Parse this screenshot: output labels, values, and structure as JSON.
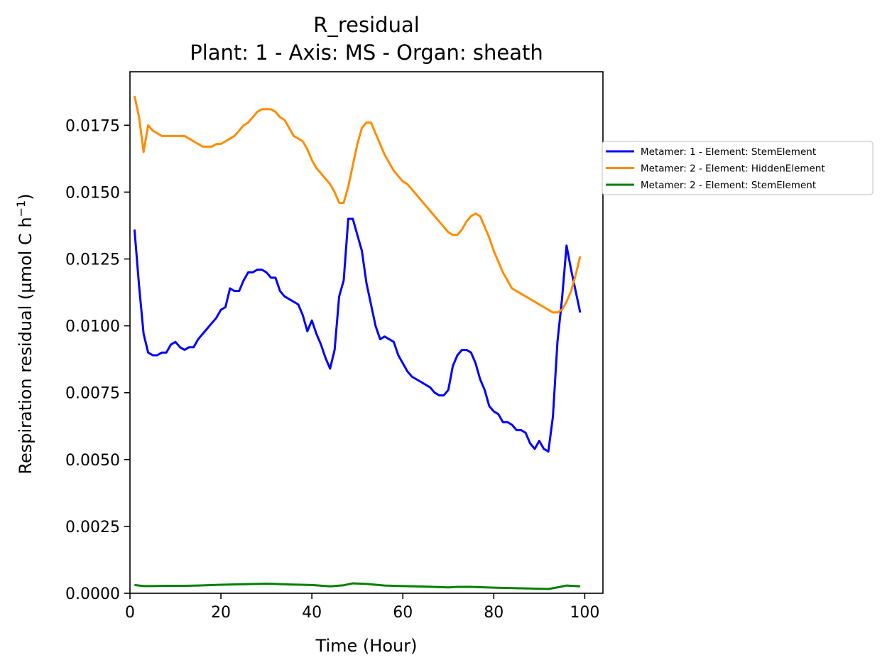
{
  "chart_data": {
    "type": "line",
    "title": "R_residual",
    "subtitle": "Plant: 1 - Axis: MS - Organ: sheath",
    "xlabel": "Time (Hour)",
    "ylabel": "Respiration residual (µmol C h",
    "ylabel_exponent": "−1",
    "ylabel_suffix": ")",
    "xlim": [
      0,
      104
    ],
    "ylim": [
      0,
      0.0195
    ],
    "x_ticks": [
      0,
      20,
      40,
      60,
      80,
      100
    ],
    "x_tick_labels": [
      "0",
      "20",
      "40",
      "60",
      "80",
      "100"
    ],
    "y_ticks": [
      0,
      0.0025,
      0.005,
      0.0075,
      0.01,
      0.0125,
      0.015,
      0.0175
    ],
    "y_tick_labels": [
      "0.0000",
      "0.0025",
      "0.0050",
      "0.0075",
      "0.0100",
      "0.0125",
      "0.0150",
      "0.0175"
    ],
    "grid": false,
    "legend_position": "outside-right",
    "series": [
      {
        "name": "Metamer: 1 - Element: StemElement",
        "color": "#0000ff",
        "points": [
          [
            1,
            0.0136
          ],
          [
            2,
            0.0115
          ],
          [
            3,
            0.0097
          ],
          [
            4,
            0.009
          ],
          [
            5,
            0.0089
          ],
          [
            6,
            0.0089
          ],
          [
            7,
            0.009
          ],
          [
            8,
            0.009
          ],
          [
            9,
            0.0093
          ],
          [
            10,
            0.0094
          ],
          [
            11,
            0.0092
          ],
          [
            12,
            0.0091
          ],
          [
            13,
            0.0092
          ],
          [
            14,
            0.0092
          ],
          [
            15,
            0.0095
          ],
          [
            16,
            0.0097
          ],
          [
            17,
            0.0099
          ],
          [
            18,
            0.0101
          ],
          [
            19,
            0.0103
          ],
          [
            20,
            0.0106
          ],
          [
            21,
            0.0107
          ],
          [
            22,
            0.0114
          ],
          [
            23,
            0.0113
          ],
          [
            24,
            0.0113
          ],
          [
            25,
            0.0117
          ],
          [
            26,
            0.012
          ],
          [
            27,
            0.012
          ],
          [
            28,
            0.0121
          ],
          [
            29,
            0.0121
          ],
          [
            30,
            0.012
          ],
          [
            31,
            0.0118
          ],
          [
            32,
            0.0118
          ],
          [
            33,
            0.0113
          ],
          [
            34,
            0.0111
          ],
          [
            35,
            0.011
          ],
          [
            36,
            0.0109
          ],
          [
            37,
            0.0108
          ],
          [
            38,
            0.0104
          ],
          [
            39,
            0.0098
          ],
          [
            40,
            0.0102
          ],
          [
            41,
            0.0097
          ],
          [
            42,
            0.0093
          ],
          [
            43,
            0.0088
          ],
          [
            44,
            0.0084
          ],
          [
            45,
            0.0091
          ],
          [
            46,
            0.0111
          ],
          [
            47,
            0.0117
          ],
          [
            48,
            0.014
          ],
          [
            49,
            0.014
          ],
          [
            50,
            0.0134
          ],
          [
            51,
            0.0128
          ],
          [
            52,
            0.0116
          ],
          [
            53,
            0.0108
          ],
          [
            54,
            0.01
          ],
          [
            55,
            0.0095
          ],
          [
            56,
            0.0096
          ],
          [
            57,
            0.0095
          ],
          [
            58,
            0.0094
          ],
          [
            59,
            0.0089
          ],
          [
            60,
            0.0086
          ],
          [
            61,
            0.0083
          ],
          [
            62,
            0.0081
          ],
          [
            63,
            0.008
          ],
          [
            64,
            0.0079
          ],
          [
            65,
            0.0078
          ],
          [
            66,
            0.0077
          ],
          [
            67,
            0.0075
          ],
          [
            68,
            0.0074
          ],
          [
            69,
            0.0074
          ],
          [
            70,
            0.0076
          ],
          [
            71,
            0.0085
          ],
          [
            72,
            0.0089
          ],
          [
            73,
            0.0091
          ],
          [
            74,
            0.0091
          ],
          [
            75,
            0.009
          ],
          [
            76,
            0.0086
          ],
          [
            77,
            0.008
          ],
          [
            78,
            0.0076
          ],
          [
            79,
            0.007
          ],
          [
            80,
            0.0068
          ],
          [
            81,
            0.0067
          ],
          [
            82,
            0.0064
          ],
          [
            83,
            0.0064
          ],
          [
            84,
            0.0063
          ],
          [
            85,
            0.0061
          ],
          [
            86,
            0.0061
          ],
          [
            87,
            0.006
          ],
          [
            88,
            0.0056
          ],
          [
            89,
            0.0054
          ],
          [
            90,
            0.0057
          ],
          [
            91,
            0.0054
          ],
          [
            92,
            0.0053
          ],
          [
            93,
            0.0066
          ],
          [
            94,
            0.0094
          ],
          [
            95,
            0.011
          ],
          [
            96,
            0.013
          ],
          [
            97,
            0.0121
          ],
          [
            98,
            0.0113
          ],
          [
            99,
            0.0105
          ]
        ]
      },
      {
        "name": "Metamer: 2 - Element: HiddenElement",
        "color": "#ff8c00",
        "points": [
          [
            1,
            0.0186
          ],
          [
            2,
            0.0178
          ],
          [
            3,
            0.0165
          ],
          [
            4,
            0.0175
          ],
          [
            5,
            0.0173
          ],
          [
            6,
            0.0172
          ],
          [
            7,
            0.0171
          ],
          [
            8,
            0.0171
          ],
          [
            9,
            0.0171
          ],
          [
            10,
            0.0171
          ],
          [
            11,
            0.0171
          ],
          [
            12,
            0.0171
          ],
          [
            13,
            0.017
          ],
          [
            14,
            0.0169
          ],
          [
            15,
            0.0168
          ],
          [
            16,
            0.0167
          ],
          [
            17,
            0.0167
          ],
          [
            18,
            0.0167
          ],
          [
            19,
            0.0168
          ],
          [
            20,
            0.0168
          ],
          [
            21,
            0.0169
          ],
          [
            22,
            0.017
          ],
          [
            23,
            0.0171
          ],
          [
            24,
            0.0173
          ],
          [
            25,
            0.0175
          ],
          [
            26,
            0.0176
          ],
          [
            27,
            0.0178
          ],
          [
            28,
            0.018
          ],
          [
            29,
            0.0181
          ],
          [
            30,
            0.0181
          ],
          [
            31,
            0.0181
          ],
          [
            32,
            0.018
          ],
          [
            33,
            0.0178
          ],
          [
            34,
            0.0177
          ],
          [
            35,
            0.0174
          ],
          [
            36,
            0.0171
          ],
          [
            37,
            0.017
          ],
          [
            38,
            0.0169
          ],
          [
            39,
            0.0166
          ],
          [
            40,
            0.0162
          ],
          [
            41,
            0.0159
          ],
          [
            42,
            0.0157
          ],
          [
            43,
            0.0155
          ],
          [
            44,
            0.0153
          ],
          [
            45,
            0.015
          ],
          [
            46,
            0.0146
          ],
          [
            47,
            0.0146
          ],
          [
            48,
            0.0152
          ],
          [
            49,
            0.016
          ],
          [
            50,
            0.0168
          ],
          [
            51,
            0.0174
          ],
          [
            52,
            0.0176
          ],
          [
            53,
            0.0176
          ],
          [
            54,
            0.0172
          ],
          [
            55,
            0.0168
          ],
          [
            56,
            0.0164
          ],
          [
            57,
            0.0161
          ],
          [
            58,
            0.0158
          ],
          [
            59,
            0.0156
          ],
          [
            60,
            0.0154
          ],
          [
            61,
            0.0153
          ],
          [
            62,
            0.0151
          ],
          [
            63,
            0.0149
          ],
          [
            64,
            0.0147
          ],
          [
            65,
            0.0145
          ],
          [
            66,
            0.0143
          ],
          [
            67,
            0.0141
          ],
          [
            68,
            0.0139
          ],
          [
            69,
            0.0137
          ],
          [
            70,
            0.0135
          ],
          [
            71,
            0.0134
          ],
          [
            72,
            0.0134
          ],
          [
            73,
            0.0136
          ],
          [
            74,
            0.0139
          ],
          [
            75,
            0.0141
          ],
          [
            76,
            0.0142
          ],
          [
            77,
            0.0141
          ],
          [
            78,
            0.0137
          ],
          [
            79,
            0.0133
          ],
          [
            80,
            0.0128
          ],
          [
            81,
            0.0124
          ],
          [
            82,
            0.012
          ],
          [
            83,
            0.0117
          ],
          [
            84,
            0.0114
          ],
          [
            85,
            0.0113
          ],
          [
            86,
            0.0112
          ],
          [
            87,
            0.0111
          ],
          [
            88,
            0.011
          ],
          [
            89,
            0.0109
          ],
          [
            90,
            0.0108
          ],
          [
            91,
            0.0107
          ],
          [
            92,
            0.0106
          ],
          [
            93,
            0.0105
          ],
          [
            94,
            0.0105
          ],
          [
            95,
            0.0106
          ],
          [
            96,
            0.0109
          ],
          [
            97,
            0.0113
          ],
          [
            98,
            0.0119
          ],
          [
            99,
            0.0126
          ]
        ]
      },
      {
        "name": "Metamer: 2 - Element: StemElement",
        "color": "#008000",
        "points": [
          [
            1,
            0.00031
          ],
          [
            3,
            0.00027
          ],
          [
            5,
            0.00027
          ],
          [
            8,
            0.00028
          ],
          [
            12,
            0.00028
          ],
          [
            15,
            0.00029
          ],
          [
            20,
            0.00032
          ],
          [
            25,
            0.00034
          ],
          [
            30,
            0.00036
          ],
          [
            35,
            0.00033
          ],
          [
            40,
            0.00031
          ],
          [
            44,
            0.00026
          ],
          [
            47,
            0.0003
          ],
          [
            49,
            0.00037
          ],
          [
            52,
            0.00035
          ],
          [
            56,
            0.00029
          ],
          [
            60,
            0.00027
          ],
          [
            65,
            0.00025
          ],
          [
            70,
            0.00022
          ],
          [
            72,
            0.00024
          ],
          [
            75,
            0.00024
          ],
          [
            80,
            0.00021
          ],
          [
            85,
            0.00019
          ],
          [
            90,
            0.00017
          ],
          [
            92,
            0.00016
          ],
          [
            94,
            0.00022
          ],
          [
            96,
            0.00029
          ],
          [
            99,
            0.00026
          ]
        ]
      }
    ]
  }
}
